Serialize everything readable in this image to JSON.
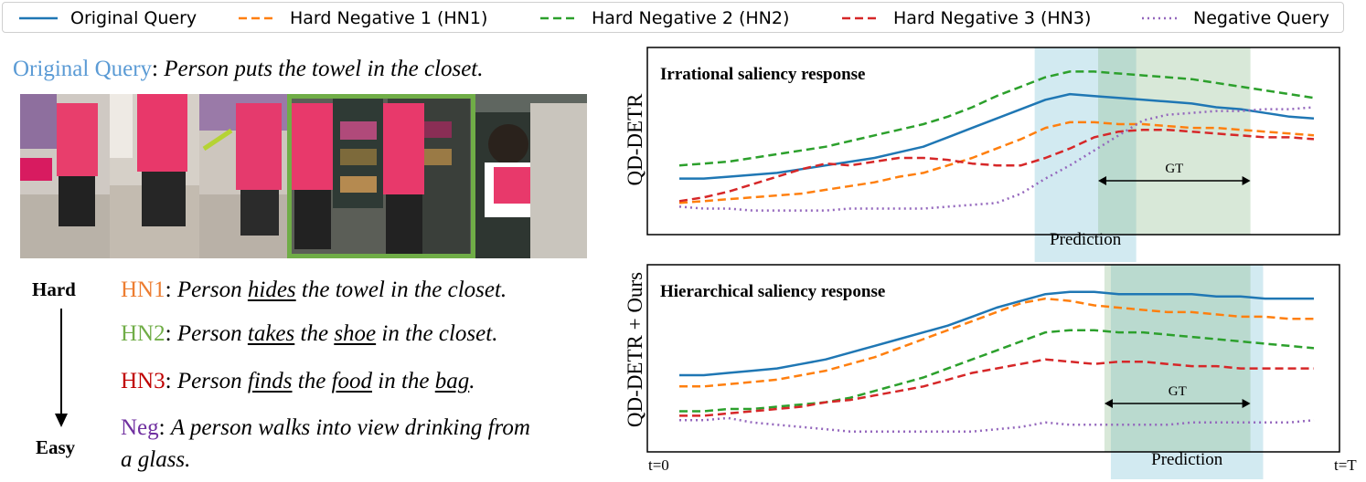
{
  "legend": [
    {
      "label": "Original Query",
      "color": "#1f77b4",
      "dash": "solid"
    },
    {
      "label": "Hard Negative 1 (HN1)",
      "color": "#ff7f0e",
      "dash": "dashed"
    },
    {
      "label": "Hard Negative 2 (HN2)",
      "color": "#2ca02c",
      "dash": "dashed"
    },
    {
      "label": "Hard Negative 3 (HN3)",
      "color": "#d62728",
      "dash": "dashed"
    },
    {
      "label": "Negative Query",
      "color": "#9467bd",
      "dash": "dotted"
    }
  ],
  "left": {
    "original_query_label": "Original Query",
    "original_query_text": "Person puts the towel in the closet.",
    "hard_label": "Hard",
    "easy_label": "Easy",
    "hn1_label": "HN1",
    "hn1_parts": [
      "Person ",
      "hides",
      " the towel in the closet."
    ],
    "hn2_label": "HN2",
    "hn2_parts": [
      "Person ",
      "takes",
      " the ",
      "shoe",
      " in the closet."
    ],
    "hn3_label": "HN3",
    "hn3_parts": [
      "Person ",
      "finds",
      " the ",
      "food",
      " in the ",
      "bag",
      "."
    ],
    "neg_label": "Neg",
    "neg_line1": "A person walks into view drinking from",
    "neg_line2": "a glass."
  },
  "colors": {
    "original": "#5b9bd5",
    "hn1": "#ed7d31",
    "hn2": "#70ad47",
    "hn3": "#c00000",
    "neg": "#7030a0",
    "frame_highlight": "#70ad47",
    "prediction": "#add8e6",
    "gt": "#8fbc8f"
  },
  "chart_data": [
    {
      "type": "line",
      "panel_label": "QD-DETR",
      "title": "Irrational saliency response",
      "x_start_label": "t=0",
      "x_end_label": "t=T",
      "x_range": [
        0,
        1
      ],
      "prediction_label": "Prediction",
      "gt_label": "GT",
      "prediction_span": [
        0.56,
        0.72
      ],
      "gt_span": [
        0.66,
        0.9
      ],
      "series": [
        {
          "name": "Original Query",
          "color": "#1f77b4",
          "dash": "solid",
          "y": [
            0.55,
            0.55,
            0.56,
            0.57,
            0.58,
            0.6,
            0.62,
            0.64,
            0.66,
            0.69,
            0.72,
            0.77,
            0.82,
            0.87,
            0.92,
            0.97,
            1.0,
            0.99,
            0.98,
            0.97,
            0.96,
            0.95,
            0.93,
            0.92,
            0.9,
            0.88,
            0.87
          ]
        },
        {
          "name": "Hard Negative 1 (HN1)",
          "color": "#ff7f0e",
          "dash": "dashed",
          "y": [
            0.42,
            0.43,
            0.44,
            0.45,
            0.46,
            0.47,
            0.49,
            0.51,
            0.53,
            0.56,
            0.58,
            0.62,
            0.66,
            0.71,
            0.76,
            0.82,
            0.85,
            0.85,
            0.84,
            0.84,
            0.83,
            0.82,
            0.82,
            0.81,
            0.8,
            0.79,
            0.78
          ]
        },
        {
          "name": "Hard Negative 2 (HN2)",
          "color": "#2ca02c",
          "dash": "dashed",
          "y": [
            0.62,
            0.63,
            0.64,
            0.66,
            0.68,
            0.7,
            0.72,
            0.75,
            0.78,
            0.81,
            0.84,
            0.88,
            0.93,
            0.99,
            1.04,
            1.09,
            1.12,
            1.12,
            1.11,
            1.1,
            1.09,
            1.08,
            1.06,
            1.04,
            1.02,
            1.0,
            0.98
          ]
        },
        {
          "name": "Hard Negative 3 (HN3)",
          "color": "#d62728",
          "dash": "dashed",
          "y": [
            0.43,
            0.45,
            0.48,
            0.52,
            0.56,
            0.6,
            0.63,
            0.62,
            0.64,
            0.66,
            0.66,
            0.65,
            0.63,
            0.62,
            0.62,
            0.66,
            0.71,
            0.77,
            0.8,
            0.81,
            0.81,
            0.8,
            0.79,
            0.78,
            0.77,
            0.77,
            0.76
          ]
        },
        {
          "name": "Negative Query",
          "color": "#9467bd",
          "dash": "dotted",
          "y": [
            0.4,
            0.39,
            0.39,
            0.38,
            0.38,
            0.38,
            0.38,
            0.39,
            0.39,
            0.39,
            0.39,
            0.4,
            0.41,
            0.42,
            0.47,
            0.55,
            0.62,
            0.7,
            0.78,
            0.86,
            0.89,
            0.9,
            0.91,
            0.91,
            0.92,
            0.92,
            0.93
          ]
        }
      ]
    },
    {
      "type": "line",
      "panel_label": "QD-DETR + Ours",
      "title": "Hierarchical saliency response",
      "x_start_label": "t=0",
      "x_end_label": "t=T",
      "x_range": [
        0,
        1
      ],
      "prediction_label": "Prediction",
      "gt_label": "GT",
      "prediction_span": [
        0.68,
        0.92
      ],
      "gt_span": [
        0.67,
        0.9
      ],
      "series": [
        {
          "name": "Original Query",
          "color": "#1f77b4",
          "dash": "solid",
          "y": [
            0.6,
            0.6,
            0.61,
            0.62,
            0.63,
            0.65,
            0.67,
            0.7,
            0.73,
            0.76,
            0.79,
            0.82,
            0.86,
            0.9,
            0.93,
            0.96,
            0.97,
            0.97,
            0.96,
            0.96,
            0.96,
            0.96,
            0.95,
            0.95,
            0.94,
            0.94,
            0.94
          ]
        },
        {
          "name": "Hard Negative 1 (HN1)",
          "color": "#ff7f0e",
          "dash": "dashed",
          "y": [
            0.55,
            0.55,
            0.56,
            0.57,
            0.58,
            0.6,
            0.62,
            0.65,
            0.68,
            0.72,
            0.76,
            0.8,
            0.84,
            0.88,
            0.92,
            0.94,
            0.93,
            0.91,
            0.9,
            0.89,
            0.88,
            0.88,
            0.87,
            0.86,
            0.86,
            0.85,
            0.85
          ]
        },
        {
          "name": "Hard Negative 2 (HN2)",
          "color": "#2ca02c",
          "dash": "dashed",
          "y": [
            0.44,
            0.44,
            0.45,
            0.45,
            0.46,
            0.47,
            0.48,
            0.5,
            0.53,
            0.56,
            0.59,
            0.63,
            0.67,
            0.71,
            0.75,
            0.79,
            0.8,
            0.8,
            0.79,
            0.79,
            0.78,
            0.77,
            0.76,
            0.75,
            0.74,
            0.73,
            0.72
          ]
        },
        {
          "name": "Hard Negative 3 (HN3)",
          "color": "#d62728",
          "dash": "dashed",
          "y": [
            0.42,
            0.42,
            0.43,
            0.44,
            0.45,
            0.46,
            0.48,
            0.49,
            0.51,
            0.53,
            0.55,
            0.58,
            0.61,
            0.63,
            0.65,
            0.67,
            0.66,
            0.65,
            0.66,
            0.66,
            0.65,
            0.64,
            0.64,
            0.63,
            0.63,
            0.63,
            0.63
          ]
        },
        {
          "name": "Negative Query",
          "color": "#9467bd",
          "dash": "dotted",
          "y": [
            0.4,
            0.4,
            0.41,
            0.39,
            0.38,
            0.37,
            0.36,
            0.35,
            0.35,
            0.35,
            0.35,
            0.35,
            0.35,
            0.36,
            0.37,
            0.39,
            0.38,
            0.38,
            0.38,
            0.38,
            0.38,
            0.39,
            0.39,
            0.39,
            0.39,
            0.39,
            0.4
          ]
        }
      ]
    }
  ]
}
